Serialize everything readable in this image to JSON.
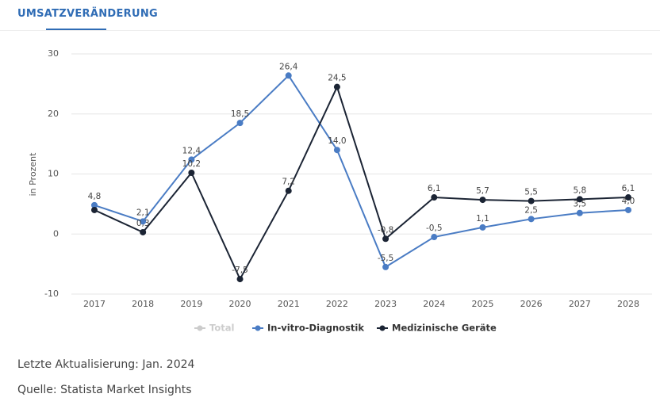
{
  "tab": "UMSATZVERÄNDERUNG",
  "chart_data": {
    "type": "line",
    "ylabel": "in Prozent",
    "categories": [
      "2017",
      "2018",
      "2019",
      "2020",
      "2021",
      "2022",
      "2023",
      "2024",
      "2025",
      "2026",
      "2027",
      "2028"
    ],
    "ylim": [
      -10,
      30
    ],
    "yticks": [
      -10,
      0,
      10,
      20,
      30
    ],
    "grid": true,
    "legend": "bottom",
    "series": [
      {
        "name": "Total",
        "color": "#cccccc",
        "values": [
          null,
          null,
          null,
          null,
          null,
          null,
          null,
          null,
          null,
          null,
          null,
          null
        ]
      },
      {
        "name": "In-vitro-Diagnostik",
        "color": "#4a7cc4",
        "values": [
          4.8,
          2.1,
          12.4,
          18.5,
          26.4,
          14.0,
          -5.5,
          -0.5,
          1.1,
          2.5,
          3.5,
          4.0
        ],
        "value_labels": [
          "4,8",
          "2,1",
          "12,4",
          "18,5",
          "26,4",
          "14,0",
          "-5,5",
          "-0,5",
          "1,1",
          "2,5",
          "3,5",
          "4,0"
        ]
      },
      {
        "name": "Medizinische Geräte",
        "color": "#1b2434",
        "values": [
          4.0,
          0.3,
          10.2,
          -7.5,
          7.2,
          24.5,
          -0.8,
          6.1,
          5.7,
          5.5,
          5.8,
          6.1
        ],
        "value_labels": [
          null,
          "0,3",
          "10,2",
          "-7,5",
          "7,2",
          "24,5",
          "-0,8",
          "6,1",
          "5,7",
          "5,5",
          "5,8",
          "6,1"
        ]
      }
    ]
  },
  "footer": {
    "updated": "Letzte Aktualisierung: Jan. 2024",
    "source": "Quelle: Statista Market Insights"
  }
}
